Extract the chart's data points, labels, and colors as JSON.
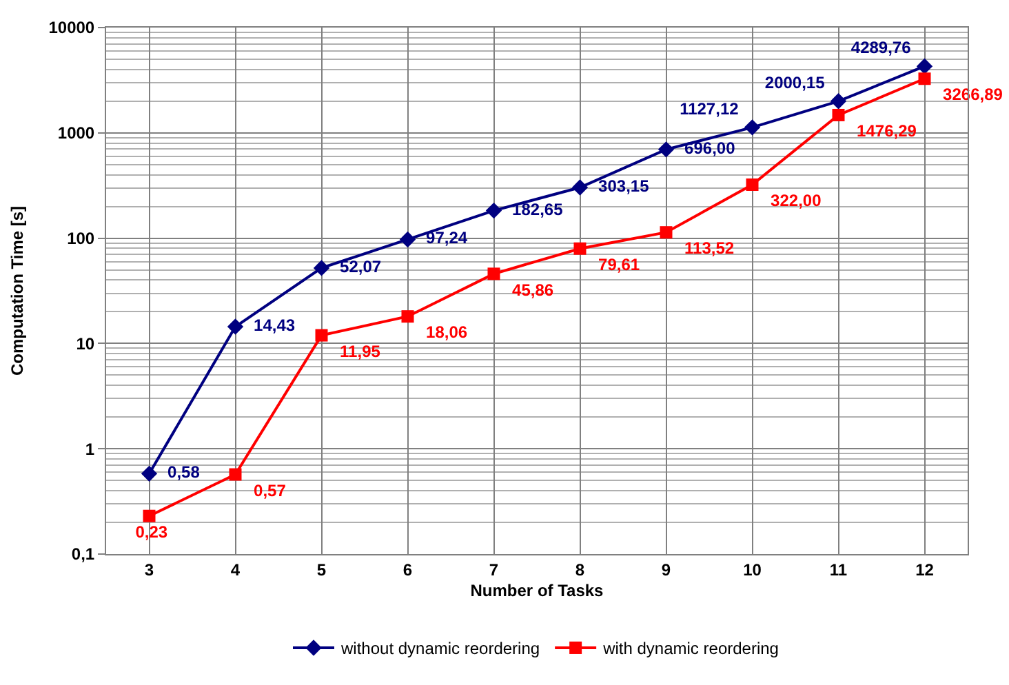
{
  "chart_data": {
    "type": "line",
    "xlabel": "Number of Tasks",
    "ylabel": "Computation Time [s]",
    "categories": [
      "3",
      "4",
      "5",
      "6",
      "7",
      "8",
      "9",
      "10",
      "11",
      "12"
    ],
    "series": [
      {
        "name": "without dynamic reordering",
        "color": "#000080",
        "marker": "diamond",
        "values": [
          0.58,
          14.43,
          52.07,
          97.24,
          182.65,
          303.15,
          696.0,
          1127.12,
          2000.15,
          4289.76
        ],
        "value_labels": [
          "0,58",
          "14,43",
          "52,07",
          "97,24",
          "182,65",
          "303,15",
          "696,00",
          "1127,12",
          "2000,15",
          "4289,76"
        ]
      },
      {
        "name": "with dynamic reordering",
        "color": "#ff0000",
        "marker": "square",
        "values": [
          0.23,
          0.57,
          11.95,
          18.06,
          45.86,
          79.61,
          113.52,
          322.0,
          1476.29,
          3266.89
        ],
        "value_labels": [
          "0,23",
          "0,57",
          "11,95",
          "18,06",
          "45,86",
          "79,61",
          "113,52",
          "322,00",
          "1476,29",
          "3266,89"
        ]
      }
    ],
    "log": "y",
    "ylim": [
      0.1,
      10000
    ],
    "yticks": [
      {
        "value": 0.1,
        "label": "0,1"
      },
      1,
      10,
      100,
      1000,
      10000
    ],
    "grid": true,
    "legend": "bottom",
    "line_style": "solid"
  }
}
